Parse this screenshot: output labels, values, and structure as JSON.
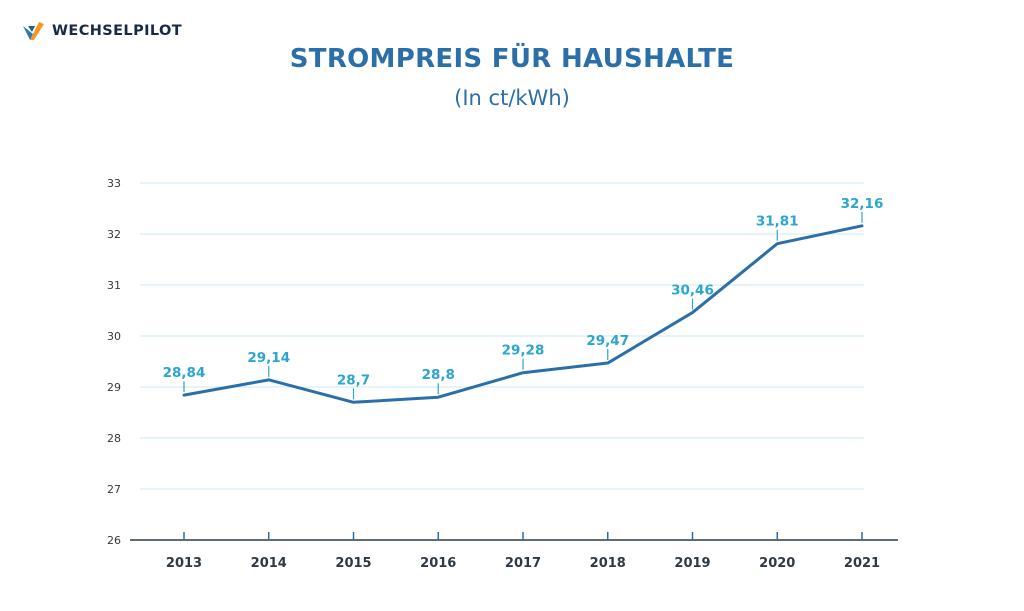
{
  "brand": {
    "name": "WECHSELPILOT",
    "colors": {
      "orange": "#f39a1e",
      "blue": "#2c7ab8",
      "navy": "#1a2a44"
    }
  },
  "chart_data": {
    "type": "line",
    "title": "STROMPREIS FÜR HAUSHALTE",
    "subtitle": "(In ct/kWh)",
    "categories": [
      "2013",
      "2014",
      "2015",
      "2016",
      "2017",
      "2018",
      "2019",
      "2020",
      "2021"
    ],
    "values": [
      28.84,
      29.14,
      28.7,
      28.8,
      29.28,
      29.47,
      30.46,
      31.81,
      32.16
    ],
    "data_labels": [
      "28,84",
      "29,14",
      "28,7",
      "28,8",
      "29,28",
      "29,47",
      "30,46",
      "31,81",
      "32,16"
    ],
    "yticks": [
      "26",
      "27",
      "28",
      "29",
      "30",
      "31",
      "32",
      "33"
    ],
    "ylim": [
      26,
      33
    ],
    "grid": true,
    "colors": {
      "line": "#2b6fa8",
      "labels": "#2aa6d0",
      "grid": "#d6ecf5",
      "axis": "#2f3944"
    }
  }
}
